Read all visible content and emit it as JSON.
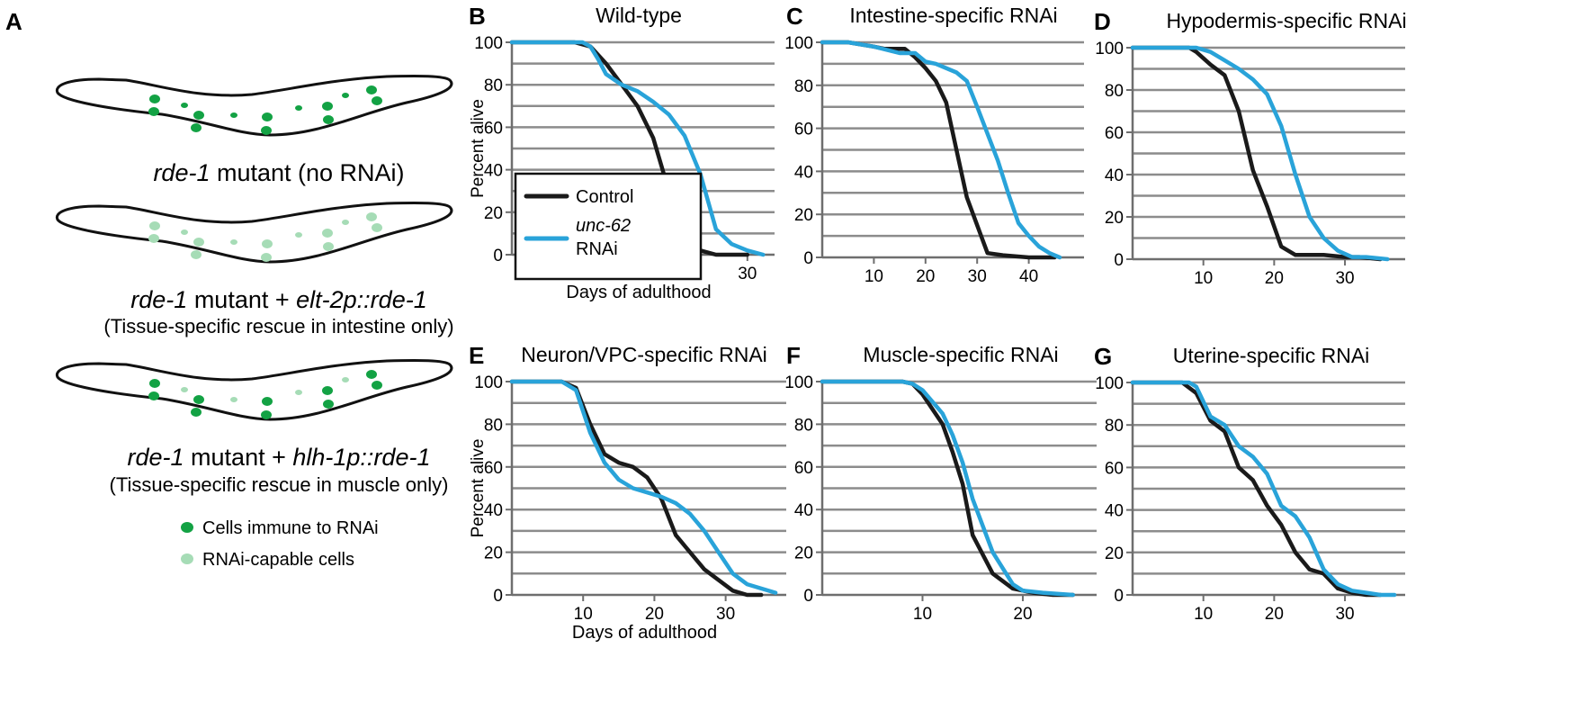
{
  "colors": {
    "control": "#1a1a1a",
    "rnai": "#29a3d9",
    "grid": "#8c8c8c",
    "axis": "#6e6e6e",
    "cell_dark": "#13a244",
    "cell_light": "#a6dcb6"
  },
  "panel_a": {
    "letter": "A",
    "worms": [
      {
        "name_italic": "rde-1",
        "name_rest": " mutant (no RNAi)",
        "sub": "",
        "cells": "dark"
      },
      {
        "name_italic": "rde-1",
        "name_mid": " mutant + ",
        "name_italic2": "elt-2p::rde-1",
        "sub": "(Tissue-specific rescue in intestine only)",
        "cells": "light"
      },
      {
        "name_italic": "rde-1",
        "name_mid": " mutant + ",
        "name_italic2": "hlh-1p::rde-1",
        "sub": "(Tissue-specific rescue in muscle only)",
        "cells": "mixed"
      }
    ],
    "key": {
      "dark": "Cells immune to RNAi",
      "light": "RNAi-capable cells"
    }
  },
  "legend": {
    "control": "Control",
    "rnai_italic": "unc-62",
    "rnai_rest": "RNAi"
  },
  "chart_data": [
    {
      "type": "line",
      "letter": "B",
      "title": "Wild-type",
      "xlabel": "Days of adulthood",
      "ylabel": "Percent alive",
      "xlim": [
        0,
        33
      ],
      "ylim": [
        0,
        100
      ],
      "xticks": [
        10,
        20,
        30
      ],
      "yticks": [
        0,
        20,
        40,
        60,
        80,
        100
      ],
      "legend": "inside-lower-left",
      "series": [
        {
          "name": "Control",
          "x": [
            0,
            8,
            10,
            12,
            14,
            16,
            18,
            20,
            22,
            24,
            26,
            28,
            30
          ],
          "y": [
            100,
            100,
            98,
            90,
            80,
            70,
            55,
            30,
            8,
            2,
            0,
            0,
            0
          ]
        },
        {
          "name": "unc-62 RNAi",
          "x": [
            0,
            9,
            10,
            11,
            12,
            14,
            16,
            18,
            20,
            22,
            24,
            26,
            28,
            30,
            32
          ],
          "y": [
            100,
            100,
            98,
            92,
            85,
            80,
            77,
            72,
            66,
            56,
            38,
            12,
            5,
            2,
            0
          ]
        }
      ]
    },
    {
      "type": "line",
      "letter": "C",
      "title": "Intestine-specific RNAi",
      "xlabel": "",
      "ylabel": "",
      "xlim": [
        0,
        50
      ],
      "ylim": [
        0,
        100
      ],
      "xticks": [
        10,
        20,
        30,
        40
      ],
      "yticks": [
        0,
        20,
        40,
        60,
        80,
        100
      ],
      "series": [
        {
          "name": "Control",
          "x": [
            0,
            5,
            10,
            12,
            16,
            18,
            20,
            22,
            24,
            26,
            28,
            30,
            32,
            35,
            40,
            45
          ],
          "y": [
            100,
            100,
            98,
            97,
            97,
            93,
            88,
            82,
            72,
            50,
            28,
            15,
            2,
            1,
            0,
            0
          ]
        },
        {
          "name": "unc-62 RNAi",
          "x": [
            0,
            5,
            10,
            15,
            18,
            20,
            22,
            26,
            28,
            30,
            34,
            36,
            38,
            40,
            42,
            44,
            46
          ],
          "y": [
            100,
            100,
            98,
            95,
            95,
            91,
            90,
            86,
            82,
            70,
            45,
            30,
            16,
            10,
            5,
            2,
            0
          ]
        }
      ]
    },
    {
      "type": "line",
      "letter": "D",
      "title": "Hypodermis-specific RNAi",
      "xlabel": "",
      "ylabel": "",
      "xlim": [
        0,
        38
      ],
      "ylim": [
        0,
        100
      ],
      "xticks": [
        10,
        20,
        30
      ],
      "yticks": [
        0,
        20,
        40,
        60,
        80,
        100
      ],
      "series": [
        {
          "name": "Control",
          "x": [
            0,
            8,
            9,
            11,
            13,
            15,
            17,
            19,
            21,
            23,
            27,
            30,
            32,
            35
          ],
          "y": [
            100,
            100,
            98,
            92,
            87,
            70,
            42,
            25,
            6,
            2,
            2,
            1,
            1,
            0
          ]
        },
        {
          "name": "unc-62 RNAi",
          "x": [
            0,
            9,
            11,
            13,
            15,
            17,
            19,
            21,
            23,
            25,
            27,
            29,
            31,
            33,
            36
          ],
          "y": [
            100,
            100,
            98,
            94,
            90,
            85,
            78,
            63,
            40,
            20,
            10,
            4,
            1,
            1,
            0
          ]
        }
      ]
    },
    {
      "type": "line",
      "letter": "E",
      "title": "Neuron/VPC-specific RNAi",
      "xlabel": "Days of adulthood",
      "ylabel": "Percent alive",
      "xlim": [
        0,
        38
      ],
      "ylim": [
        0,
        100
      ],
      "xticks": [
        10,
        20,
        30
      ],
      "yticks": [
        0,
        20,
        40,
        60,
        80,
        100
      ],
      "series": [
        {
          "name": "Control",
          "x": [
            0,
            7,
            9,
            11,
            13,
            15,
            17,
            19,
            21,
            23,
            25,
            27,
            29,
            31,
            33,
            35
          ],
          "y": [
            100,
            100,
            97,
            80,
            66,
            62,
            60,
            55,
            45,
            28,
            20,
            12,
            7,
            2,
            0,
            0
          ]
        },
        {
          "name": "unc-62 RNAi",
          "x": [
            0,
            7,
            9,
            11,
            13,
            15,
            17,
            19,
            21,
            23,
            25,
            27,
            29,
            31,
            33,
            35,
            37
          ],
          "y": [
            100,
            100,
            96,
            76,
            62,
            54,
            50,
            48,
            46,
            43,
            38,
            30,
            20,
            10,
            5,
            3,
            1
          ]
        }
      ]
    },
    {
      "type": "line",
      "letter": "F",
      "title": "Muscle-specific RNAi",
      "xlabel": "",
      "ylabel": "",
      "xlim": [
        0,
        27
      ],
      "ylim": [
        0,
        100
      ],
      "xticks": [
        10,
        20
      ],
      "yticks": [
        0,
        20,
        40,
        60,
        80,
        100
      ],
      "series": [
        {
          "name": "Control",
          "x": [
            0,
            8,
            9,
            10,
            12,
            13,
            14,
            15,
            17,
            19,
            21,
            23,
            25
          ],
          "y": [
            100,
            100,
            99,
            94,
            80,
            67,
            52,
            28,
            10,
            3,
            1,
            0,
            0
          ]
        },
        {
          "name": "unc-62 RNAi",
          "x": [
            0,
            8,
            9,
            10,
            12,
            13,
            14,
            15,
            17,
            19,
            20,
            22,
            25
          ],
          "y": [
            100,
            100,
            99,
            96,
            85,
            75,
            62,
            45,
            20,
            5,
            2,
            1,
            0
          ]
        }
      ]
    },
    {
      "type": "line",
      "letter": "G",
      "title": "Uterine-specific RNAi",
      "xlabel": "",
      "ylabel": "",
      "xlim": [
        0,
        38
      ],
      "ylim": [
        0,
        100
      ],
      "xticks": [
        10,
        20,
        30
      ],
      "yticks": [
        0,
        20,
        40,
        60,
        80,
        100
      ],
      "series": [
        {
          "name": "Control",
          "x": [
            0,
            7,
            9,
            11,
            13,
            15,
            17,
            19,
            21,
            23,
            25,
            27,
            29,
            31,
            33,
            35
          ],
          "y": [
            100,
            100,
            95,
            82,
            77,
            60,
            54,
            42,
            33,
            20,
            12,
            10,
            3,
            1,
            0,
            0
          ]
        },
        {
          "name": "unc-62 RNAi",
          "x": [
            0,
            8,
            9,
            11,
            13,
            15,
            17,
            19,
            21,
            23,
            25,
            27,
            29,
            31,
            33,
            35,
            37
          ],
          "y": [
            100,
            100,
            98,
            84,
            80,
            70,
            65,
            57,
            42,
            37,
            27,
            12,
            5,
            2,
            1,
            0,
            0
          ]
        }
      ]
    }
  ]
}
